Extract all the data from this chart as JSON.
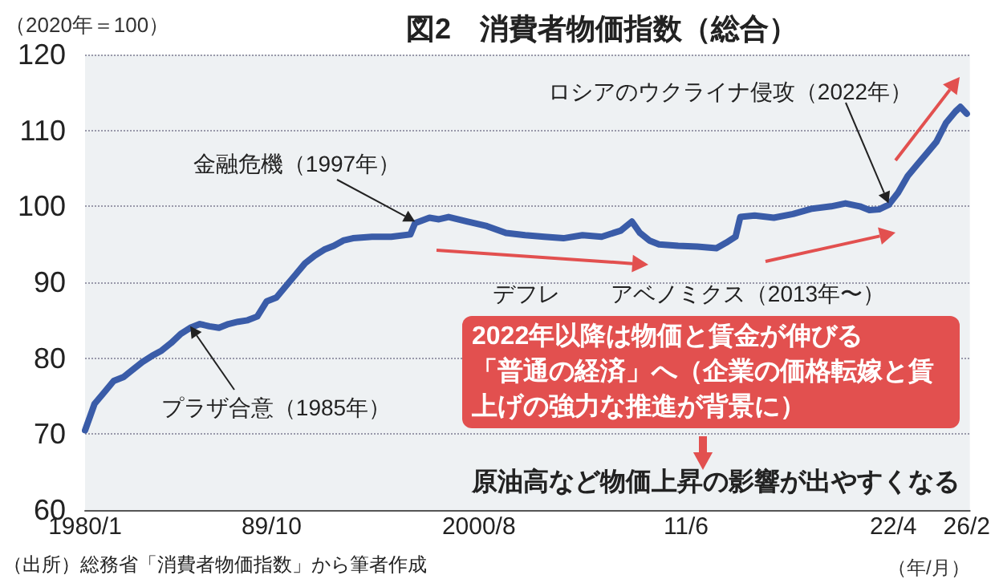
{
  "chart_data": {
    "type": "line",
    "title": "図2　消費者物価指数（総合）",
    "ylabel": "（2020年＝100）",
    "xlabel": "（年/月）",
    "x": [
      "1980-01",
      "1980-07",
      "1981-01",
      "1981-07",
      "1982-01",
      "1982-07",
      "1983-01",
      "1983-07",
      "1984-01",
      "1984-07",
      "1985-01",
      "1985-07",
      "1986-01",
      "1986-07",
      "1987-01",
      "1987-07",
      "1988-01",
      "1988-07",
      "1989-01",
      "1989-07",
      "1990-01",
      "1990-07",
      "1991-01",
      "1991-07",
      "1992-01",
      "1992-07",
      "1993-01",
      "1993-07",
      "1994-01",
      "1995-01",
      "1996-01",
      "1997-01",
      "1997-04",
      "1998-01",
      "1998-07",
      "1999-01",
      "2000-01",
      "2001-01",
      "2002-01",
      "2003-01",
      "2004-01",
      "2005-01",
      "2006-01",
      "2007-01",
      "2008-01",
      "2008-08",
      "2009-01",
      "2009-07",
      "2010-01",
      "2011-01",
      "2012-01",
      "2013-01",
      "2013-07",
      "2014-01",
      "2014-04",
      "2015-01",
      "2016-01",
      "2017-01",
      "2018-01",
      "2019-01",
      "2019-10",
      "2020-07",
      "2021-01",
      "2021-07",
      "2022-01",
      "2022-07",
      "2023-01",
      "2023-07",
      "2024-01",
      "2024-07",
      "2025-01",
      "2025-07",
      "2025-10",
      "2026-02"
    ],
    "series": [
      {
        "color": "#3a5ca8",
        "values": [
          70.5,
          74.0,
          75.5,
          77.0,
          77.5,
          78.5,
          79.5,
          80.3,
          81.0,
          82.0,
          83.2,
          84.0,
          84.5,
          84.2,
          84.0,
          84.5,
          84.8,
          85.0,
          85.5,
          87.5,
          88.0,
          89.5,
          91.0,
          92.5,
          93.5,
          94.3,
          94.8,
          95.5,
          95.8,
          96.0,
          96.0,
          96.3,
          97.8,
          98.5,
          98.3,
          98.6,
          98.0,
          97.4,
          96.5,
          96.2,
          96.0,
          95.8,
          96.2,
          96.0,
          96.8,
          98.0,
          96.5,
          95.5,
          95.0,
          94.8,
          94.7,
          94.5,
          95.2,
          96.0,
          98.6,
          98.8,
          98.5,
          99.0,
          99.7,
          100.0,
          100.4,
          100.0,
          99.5,
          99.6,
          100.2,
          101.8,
          104.0,
          105.5,
          107.0,
          108.5,
          111.0,
          112.5,
          113.1,
          112.2
        ]
      }
    ],
    "xlim": [
      "1980-01",
      "2026-04"
    ],
    "xticks": [
      {
        "value": "1980-01",
        "label": "1980/1"
      },
      {
        "value": "1989-10",
        "label": "89/10"
      },
      {
        "value": "2000-08",
        "label": "2000/8"
      },
      {
        "value": "2011-06",
        "label": "11/6"
      },
      {
        "value": "2022-04",
        "label": "22/4"
      },
      {
        "value": "2026-02",
        "label": "26/2"
      }
    ],
    "ylim": [
      60,
      120
    ],
    "yticks": [
      60,
      70,
      80,
      90,
      100,
      110,
      120
    ],
    "grid": "y",
    "marker": "none",
    "line_style": "solid",
    "annotations": [
      {
        "text": "金融危機（1997年）",
        "x": "1997-04",
        "y": 97.8
      },
      {
        "text": "プラザ合意（1985年）",
        "x": "1985-07",
        "y": 84.0
      },
      {
        "text": "ロシアのウクライナ侵攻（2022年）",
        "x": "2022-01",
        "y": 100.2
      },
      "デフレ",
      "アベノミクス（2013年〜）",
      "2022年以降は物価と賃金が伸びる",
      "「普通の経済」へ（企業の価格転嫁と賃",
      "上げの強力な推進が背景に）",
      "原油高など物価上昇の影響が出やすくなる",
      "（出所）総務省「消費者物価指数」から筆者作成"
    ]
  }
}
